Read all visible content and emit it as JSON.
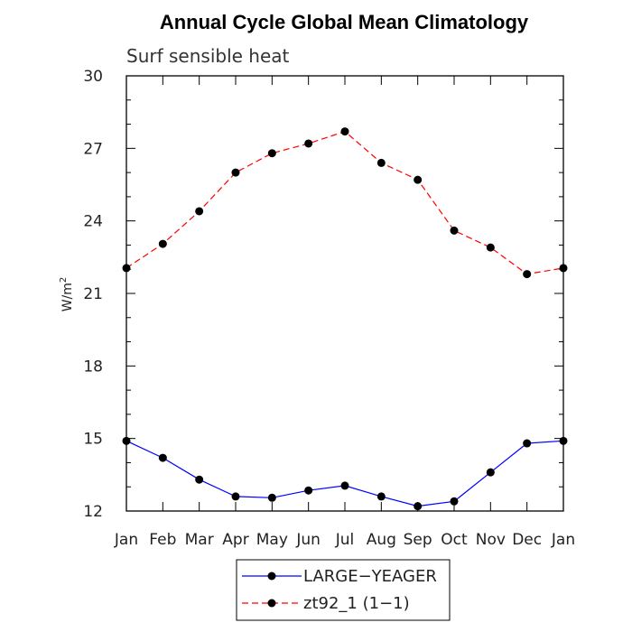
{
  "chart_data": {
    "type": "line",
    "title": "Annual Cycle Global Mean Climatology",
    "subtitle": "Surf sensible heat",
    "ylabel_base": "W/m",
    "ylabel_sup": "2",
    "categories": [
      "Jan",
      "Feb",
      "Mar",
      "Apr",
      "May",
      "Jun",
      "Jul",
      "Aug",
      "Sep",
      "Oct",
      "Nov",
      "Dec",
      "Jan"
    ],
    "ylim": [
      12,
      30
    ],
    "yticks": [
      12,
      15,
      18,
      21,
      24,
      27,
      30
    ],
    "ytick_labels": [
      "12",
      "15",
      "18",
      "21",
      "24",
      "27",
      "30"
    ],
    "series": [
      {
        "name": "LARGE−YEAGER",
        "color": "#0000ff",
        "dash": "solid",
        "values": [
          14.9,
          14.2,
          13.3,
          12.6,
          12.55,
          12.85,
          13.05,
          12.6,
          12.2,
          12.4,
          13.6,
          14.8,
          14.9
        ]
      },
      {
        "name": "zt92_1 (1−1)",
        "color": "#ff0000",
        "dash": "dashed",
        "values": [
          22.05,
          23.05,
          24.4,
          26.0,
          26.8,
          27.2,
          27.7,
          26.4,
          25.7,
          23.6,
          22.9,
          21.8,
          22.05
        ]
      }
    ],
    "marker_color": "#000000",
    "legend_position": "bottom-center",
    "grid": false
  }
}
